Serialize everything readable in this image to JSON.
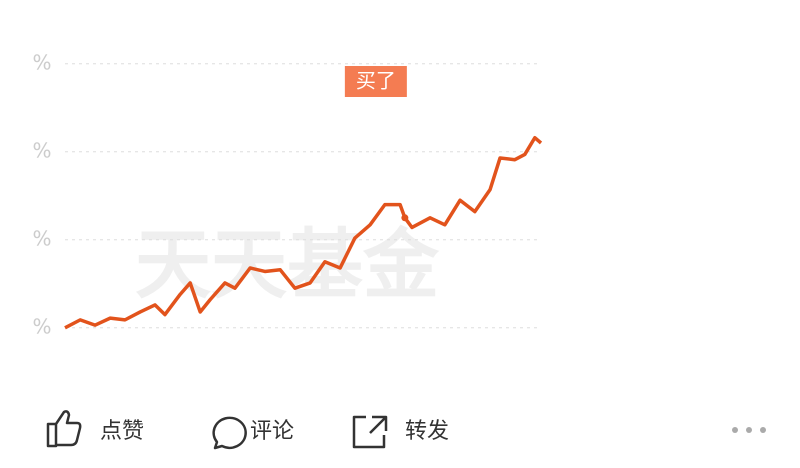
{
  "chart_data": {
    "type": "line",
    "x": [
      0,
      3.2,
      6.3,
      9.5,
      12.6,
      15.8,
      18.9,
      21,
      24.2,
      26.3,
      28.4,
      30.5,
      33.6,
      35.7,
      38.9,
      42,
      45.2,
      48.3,
      51.5,
      54.6,
      57.8,
      60.9,
      64.1,
      67.2,
      70.4,
      71.4,
      72.9,
      76.7,
      79.8,
      83,
      86.1,
      89.3,
      91.4,
      94.5,
      96.6,
      98.7,
      100
    ],
    "values": [
      0,
      0.09,
      0.03,
      0.11,
      0.09,
      0.18,
      0.26,
      0.15,
      0.38,
      0.51,
      0.18,
      0.32,
      0.51,
      0.45,
      0.68,
      0.64,
      0.66,
      0.45,
      0.51,
      0.75,
      0.68,
      1.02,
      1.17,
      1.4,
      1.4,
      1.25,
      1.14,
      1.25,
      1.17,
      1.45,
      1.32,
      1.57,
      1.93,
      1.91,
      1.97,
      2.16,
      2.1
    ],
    "color": "#e2531c",
    "xlim": [
      0,
      100
    ],
    "ylim": [
      -0.65,
      3.1
    ],
    "yticks": [
      {
        "value": 0,
        "label": "%"
      },
      {
        "value": 1,
        "label": "%"
      },
      {
        "value": 2,
        "label": "%"
      },
      {
        "value": 3,
        "label": "%"
      }
    ],
    "grid": true,
    "watermark": "天天基金",
    "buy_marker": {
      "label": "买了",
      "x": 71.4,
      "value": 1.25
    }
  },
  "actions": [
    "点赞",
    "评论",
    "转发"
  ]
}
